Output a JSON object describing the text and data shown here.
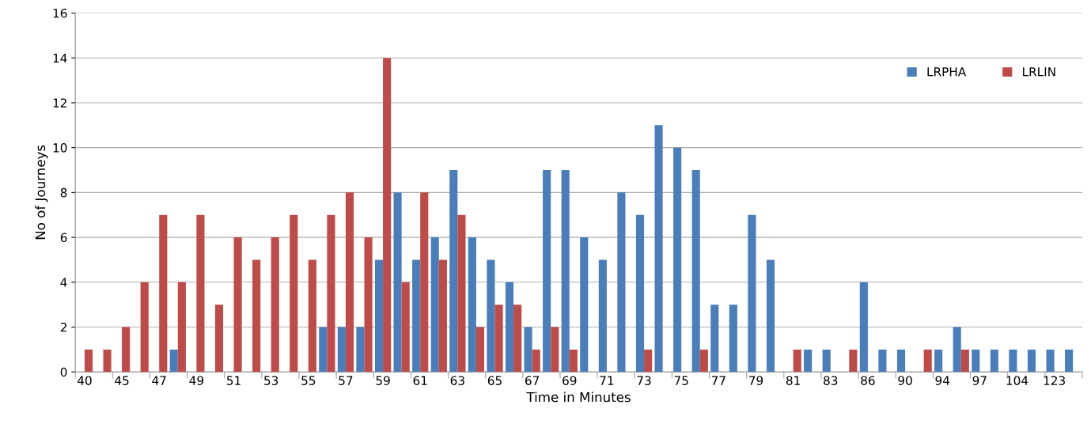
{
  "chart_data": {
    "type": "bar",
    "xlabel": "Time in Minutes",
    "ylabel": "No of Journeys",
    "categories": [
      "40",
      null,
      "45",
      null,
      "47",
      null,
      "49",
      null,
      "51",
      null,
      "53",
      null,
      "55",
      null,
      "57",
      null,
      "59",
      null,
      "61",
      null,
      "63",
      null,
      "65",
      null,
      "67",
      null,
      "69",
      null,
      "71",
      null,
      "73",
      null,
      "75",
      null,
      "77",
      null,
      "79",
      null,
      "81",
      null,
      "83",
      null,
      "86",
      null,
      "90",
      null,
      "94",
      null,
      "97",
      null,
      "104",
      null,
      "123",
      null
    ],
    "series": [
      {
        "name": "LRPHA",
        "color": "#4a7ebb",
        "values": [
          0,
          0,
          0,
          0,
          0,
          1,
          0,
          0,
          0,
          0,
          0,
          0,
          0,
          2,
          2,
          2,
          5,
          8,
          5,
          6,
          9,
          6,
          5,
          4,
          2,
          9,
          9,
          6,
          5,
          8,
          7,
          11,
          10,
          9,
          3,
          3,
          7,
          5,
          0,
          1,
          1,
          0,
          4,
          1,
          1,
          0,
          1,
          2,
          1,
          1,
          1,
          1,
          1,
          1
        ]
      },
      {
        "name": "LRLIN",
        "color": "#be4b48",
        "values": [
          1,
          1,
          2,
          4,
          7,
          4,
          7,
          3,
          6,
          5,
          6,
          7,
          5,
          7,
          8,
          6,
          14,
          4,
          8,
          5,
          7,
          2,
          3,
          3,
          1,
          2,
          1,
          0,
          0,
          0,
          1,
          0,
          0,
          1,
          0,
          0,
          0,
          0,
          1,
          0,
          0,
          1,
          0,
          0,
          0,
          1,
          0,
          1,
          0,
          0,
          0,
          0,
          0,
          0
        ]
      }
    ],
    "ylim": [
      0,
      16
    ],
    "yticks": [
      0,
      2,
      4,
      6,
      8,
      10,
      12,
      14,
      16
    ],
    "grid": "y",
    "legend": "top right"
  }
}
